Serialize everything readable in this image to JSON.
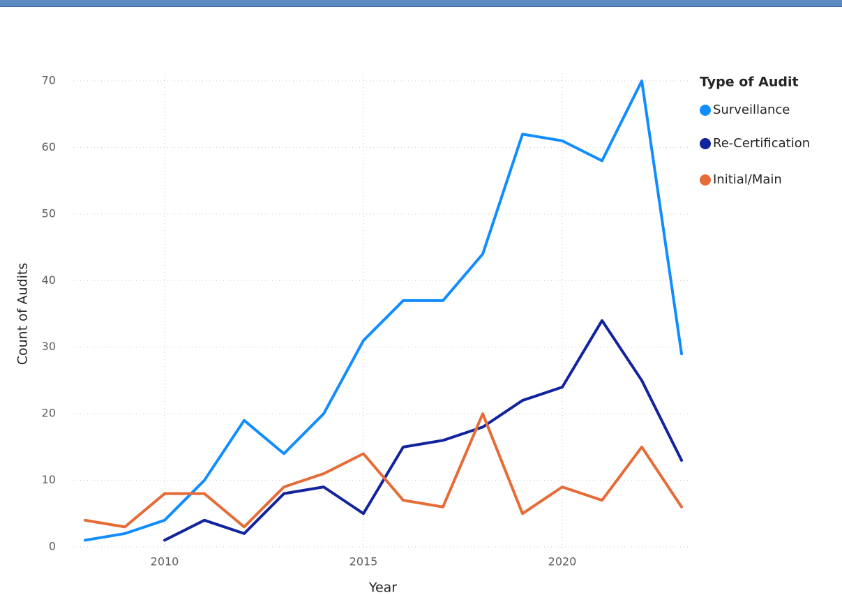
{
  "chart_data": {
    "type": "line",
    "x_label": "Year",
    "y_label": "Count of Audits",
    "legend_title": "Type of Audit",
    "x": [
      2008,
      2009,
      2010,
      2011,
      2012,
      2013,
      2014,
      2015,
      2016,
      2017,
      2018,
      2019,
      2020,
      2021,
      2022,
      2023
    ],
    "series": [
      {
        "name": "Surveillance",
        "color": "#118DFF",
        "values": [
          1,
          2,
          4,
          10,
          19,
          14,
          20,
          31,
          37,
          37,
          44,
          62,
          61,
          58,
          70,
          29
        ]
      },
      {
        "name": "Re-Certification",
        "color": "#12239E",
        "values": [
          null,
          null,
          1,
          4,
          2,
          8,
          9,
          5,
          15,
          16,
          18,
          22,
          24,
          34,
          25,
          13
        ]
      },
      {
        "name": "Initial/Main",
        "color": "#E66C37",
        "values": [
          4,
          3,
          8,
          8,
          3,
          9,
          11,
          14,
          7,
          6,
          20,
          5,
          9,
          7,
          15,
          6
        ]
      }
    ],
    "xlim": [
      2008,
      2023
    ],
    "xticks": [
      2010,
      2015,
      2020
    ],
    "ylim": [
      0,
      70
    ],
    "yticks": [
      0,
      10,
      20,
      30,
      40,
      50,
      60,
      70
    ],
    "grid": true,
    "legend": "right"
  }
}
